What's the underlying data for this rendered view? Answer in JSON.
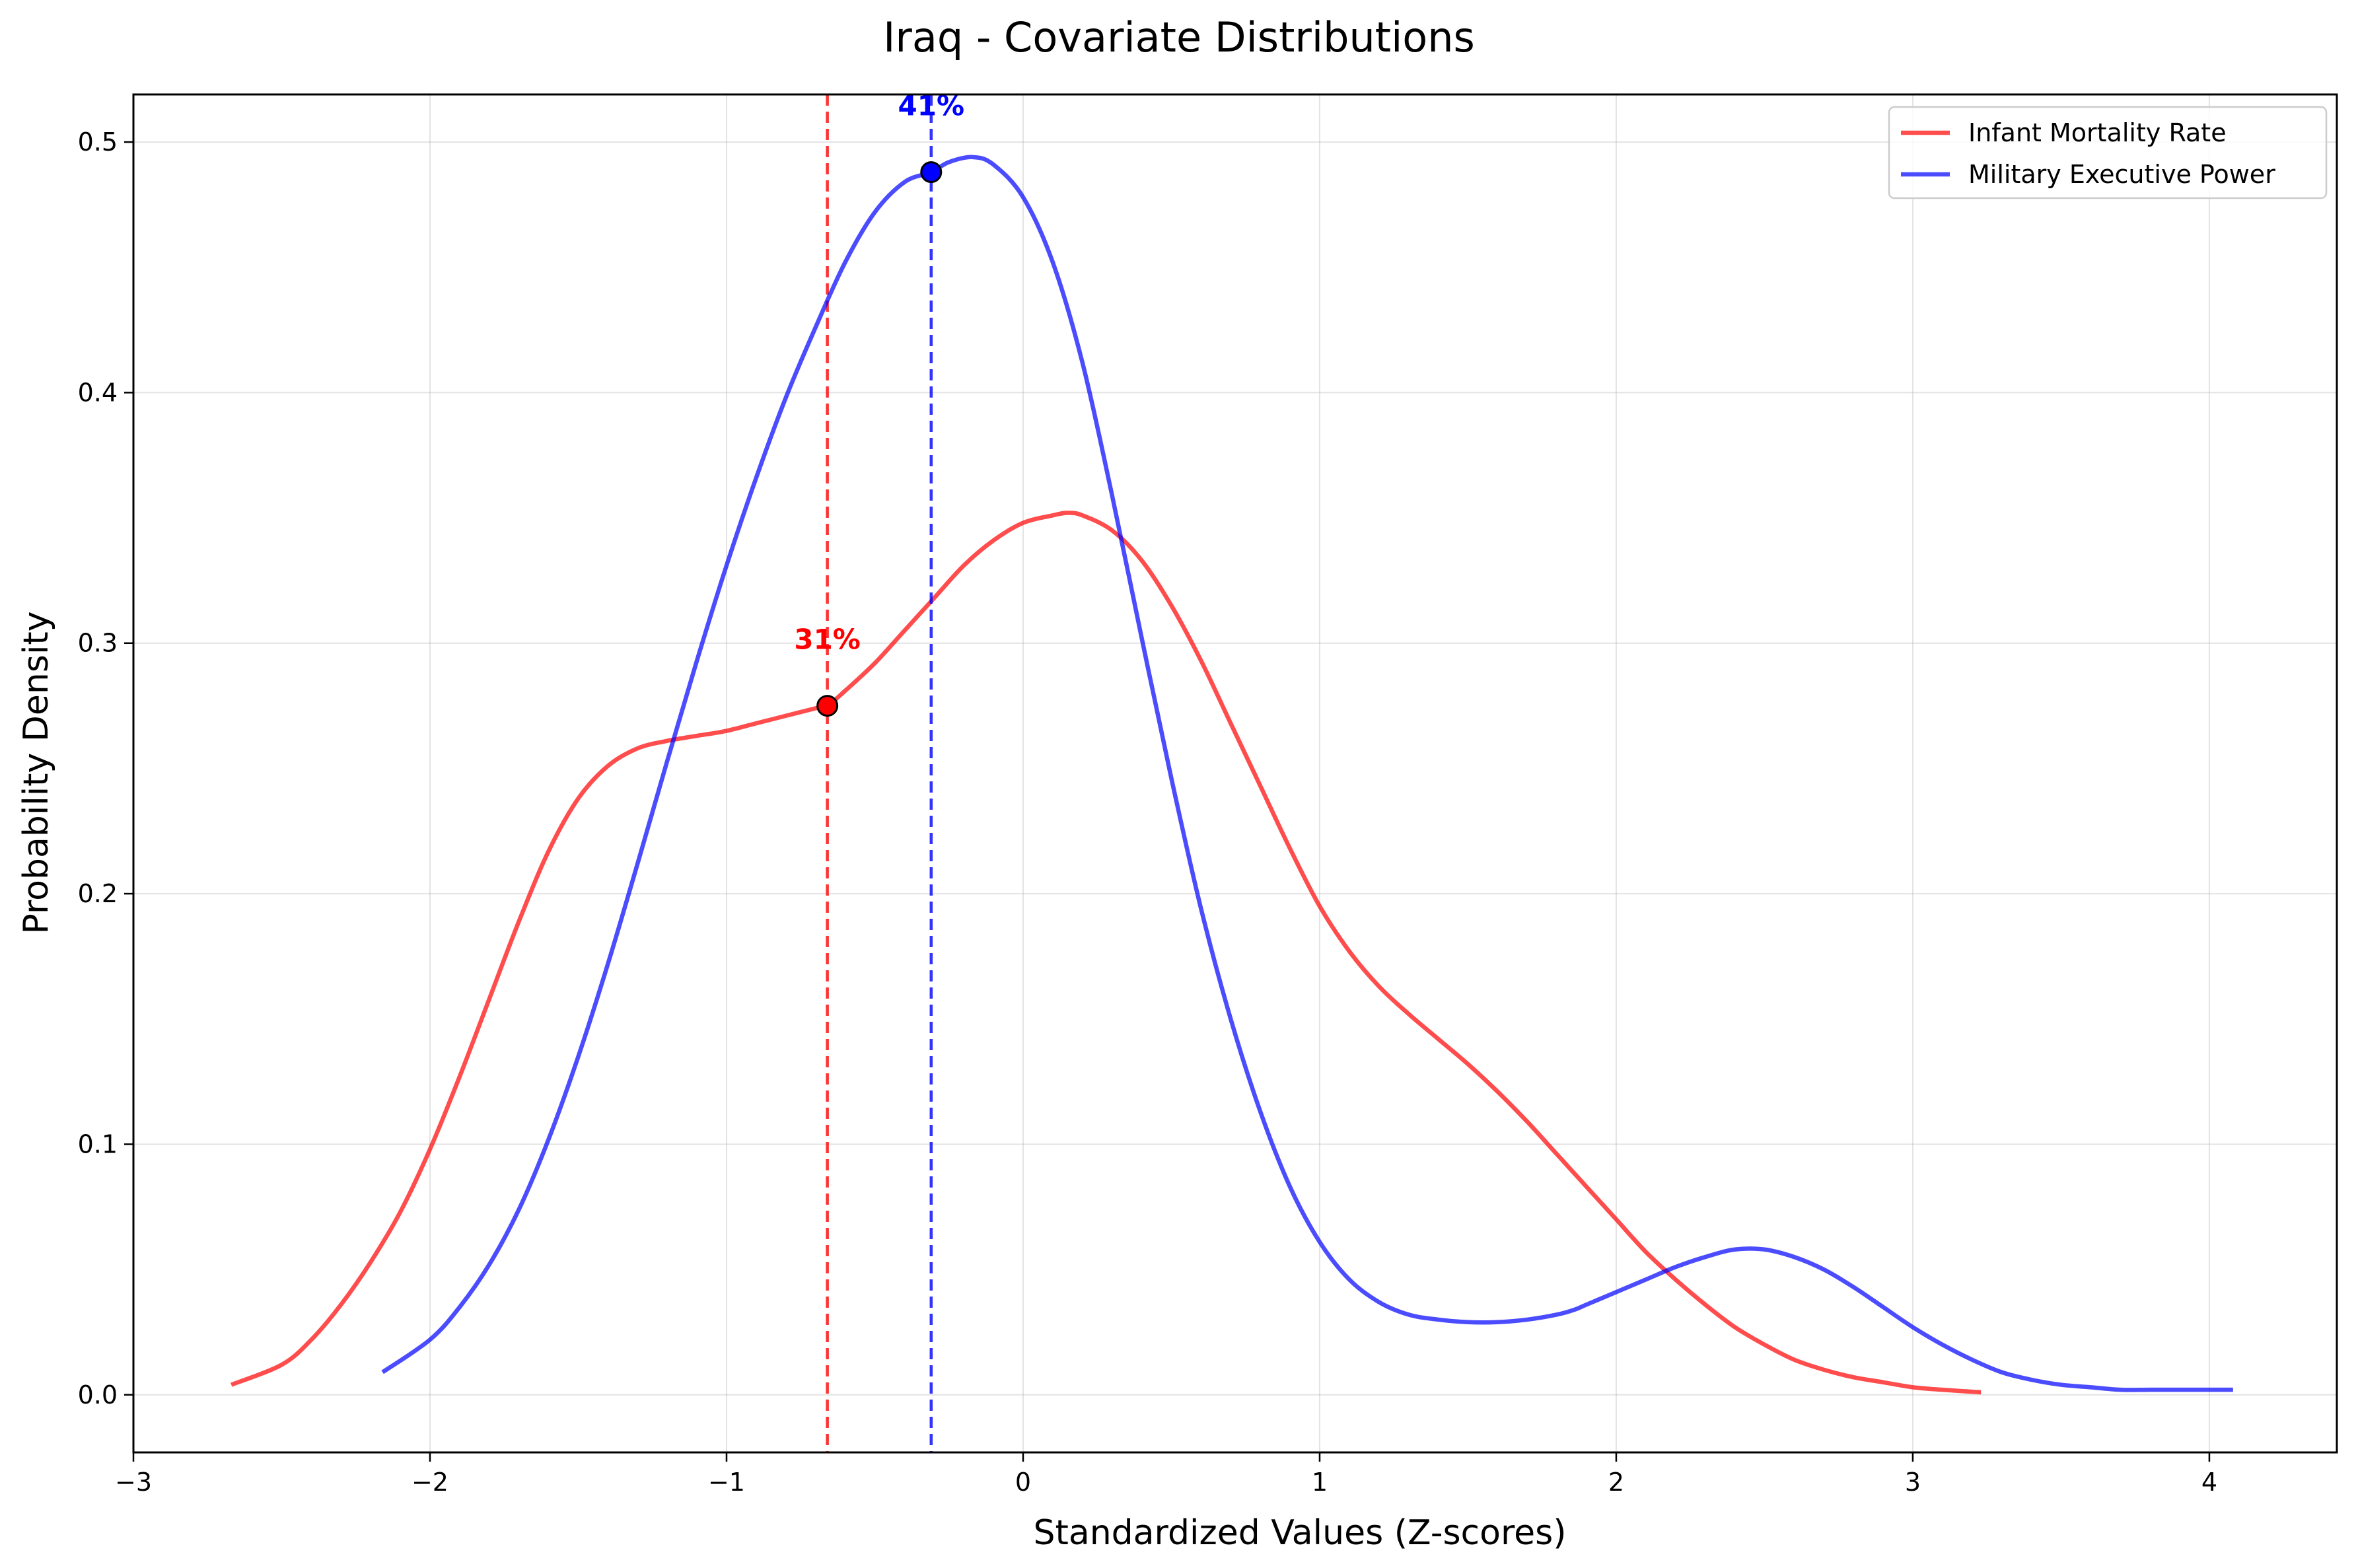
{
  "chart_data": {
    "type": "line",
    "title": "Iraq - Covariate Distributions",
    "xlabel": "Standardized Values (Z-scores)",
    "ylabel": "Probability Density",
    "xlim": [
      -3,
      4.43
    ],
    "ylim": [
      -0.023,
      0.519
    ],
    "xticks": [
      -3,
      -2,
      -1,
      0,
      1,
      2,
      3,
      4
    ],
    "xtick_labels": [
      "−3",
      "−2",
      "−1",
      "0",
      "1",
      "2",
      "3",
      "4"
    ],
    "yticks": [
      0.0,
      0.1,
      0.2,
      0.3,
      0.4,
      0.5
    ],
    "ytick_labels": [
      "0.0",
      "0.1",
      "0.2",
      "0.3",
      "0.4",
      "0.5"
    ],
    "grid": true,
    "legend_position": "top-right",
    "series": [
      {
        "name": "Infant Mortality Rate",
        "color": "#ff0000",
        "x": [
          -2.67,
          -2.5,
          -2.4,
          -2.3,
          -2.2,
          -2.1,
          -2.0,
          -1.9,
          -1.8,
          -1.7,
          -1.6,
          -1.5,
          -1.4,
          -1.3,
          -1.2,
          -1.1,
          -1.0,
          -0.9,
          -0.8,
          -0.7,
          -0.66,
          -0.6,
          -0.5,
          -0.4,
          -0.3,
          -0.2,
          -0.1,
          0.0,
          0.1,
          0.15,
          0.2,
          0.3,
          0.4,
          0.5,
          0.6,
          0.7,
          0.8,
          0.9,
          1.0,
          1.1,
          1.2,
          1.3,
          1.4,
          1.5,
          1.6,
          1.7,
          1.8,
          1.9,
          2.0,
          2.1,
          2.2,
          2.3,
          2.4,
          2.5,
          2.6,
          2.7,
          2.8,
          2.9,
          3.0,
          3.1,
          3.23
        ],
        "y": [
          0.004,
          0.012,
          0.022,
          0.036,
          0.053,
          0.073,
          0.098,
          0.127,
          0.158,
          0.189,
          0.217,
          0.238,
          0.251,
          0.258,
          0.261,
          0.263,
          0.265,
          0.268,
          0.271,
          0.274,
          0.275,
          0.281,
          0.292,
          0.305,
          0.318,
          0.331,
          0.341,
          0.348,
          0.351,
          0.352,
          0.351,
          0.345,
          0.333,
          0.315,
          0.293,
          0.268,
          0.243,
          0.218,
          0.195,
          0.177,
          0.163,
          0.152,
          0.142,
          0.132,
          0.121,
          0.109,
          0.096,
          0.083,
          0.07,
          0.057,
          0.046,
          0.036,
          0.027,
          0.02,
          0.014,
          0.01,
          0.007,
          0.005,
          0.003,
          0.002,
          0.001
        ],
        "marker": {
          "x": -0.66,
          "y": 0.275,
          "label": "31%"
        },
        "vline": -0.66
      },
      {
        "name": "Military Executive Power",
        "color": "#0000ff",
        "x": [
          -2.16,
          -2.0,
          -1.9,
          -1.8,
          -1.7,
          -1.6,
          -1.5,
          -1.4,
          -1.3,
          -1.2,
          -1.1,
          -1.0,
          -0.9,
          -0.8,
          -0.7,
          -0.6,
          -0.5,
          -0.4,
          -0.31,
          -0.25,
          -0.17,
          -0.1,
          0.0,
          0.1,
          0.2,
          0.3,
          0.4,
          0.5,
          0.6,
          0.7,
          0.8,
          0.9,
          1.0,
          1.1,
          1.2,
          1.3,
          1.4,
          1.5,
          1.6,
          1.7,
          1.8,
          1.86,
          1.9,
          2.0,
          2.1,
          2.2,
          2.3,
          2.4,
          2.5,
          2.6,
          2.7,
          2.8,
          2.9,
          3.0,
          3.1,
          3.2,
          3.3,
          3.4,
          3.5,
          3.6,
          3.7,
          3.8,
          3.9,
          4.0,
          4.08
        ],
        "y": [
          0.009,
          0.022,
          0.035,
          0.052,
          0.074,
          0.102,
          0.135,
          0.172,
          0.212,
          0.253,
          0.293,
          0.331,
          0.366,
          0.398,
          0.426,
          0.452,
          0.472,
          0.484,
          0.488,
          0.492,
          0.494,
          0.491,
          0.478,
          0.452,
          0.412,
          0.359,
          0.302,
          0.246,
          0.194,
          0.15,
          0.113,
          0.083,
          0.061,
          0.046,
          0.037,
          0.032,
          0.03,
          0.029,
          0.029,
          0.03,
          0.032,
          0.034,
          0.036,
          0.041,
          0.046,
          0.051,
          0.055,
          0.058,
          0.058,
          0.055,
          0.05,
          0.043,
          0.035,
          0.027,
          0.02,
          0.014,
          0.009,
          0.006,
          0.004,
          0.003,
          0.002,
          0.002,
          0.002,
          0.002,
          0.002
        ],
        "marker": {
          "x": -0.31,
          "y": 0.488,
          "label": "41%"
        },
        "vline": -0.31
      }
    ]
  }
}
